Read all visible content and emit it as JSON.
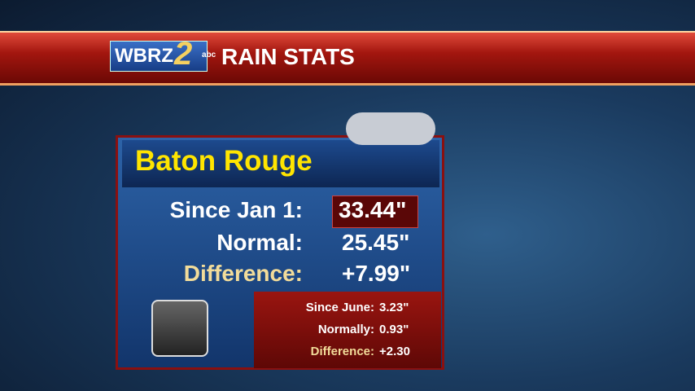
{
  "header": {
    "logo": "WBRZ",
    "channel": "2",
    "network": "abc",
    "title": "RAIN STATS"
  },
  "panel": {
    "title": "Baton Rouge",
    "rows": [
      {
        "label": "Since Jan 1:",
        "value": "33.44\""
      },
      {
        "label": "Normal:",
        "value": "25.45\""
      },
      {
        "label": "Difference:",
        "value": "+7.99\""
      }
    ],
    "monthly": [
      {
        "label": "Since June:",
        "value": "3.23\""
      },
      {
        "label": "Normally:",
        "value": "0.93\""
      },
      {
        "label": "Difference:",
        "value": "+2.30"
      }
    ]
  }
}
